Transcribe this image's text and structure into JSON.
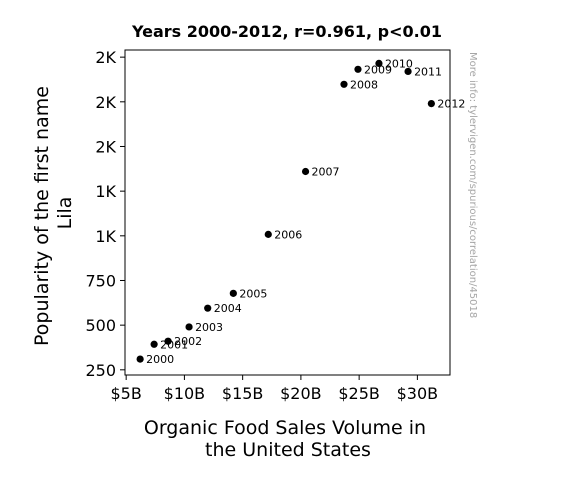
{
  "chart_data": {
    "type": "scatter",
    "title": "Years 2000-2012, r=0.961, p<0.01",
    "xlabel": [
      "Organic Food Sales Volume in",
      "the United States"
    ],
    "ylabel": [
      "Popularity of the first name",
      "Lila"
    ],
    "xlim": [
      4.9,
      32.8
    ],
    "ylim": [
      221,
      2040
    ],
    "x_ticks": [
      {
        "value": 5,
        "label": "$5B"
      },
      {
        "value": 10,
        "label": "$10B"
      },
      {
        "value": 15,
        "label": "$15B"
      },
      {
        "value": 20,
        "label": "$20B"
      },
      {
        "value": 25,
        "label": "$25B"
      },
      {
        "value": 30,
        "label": "$30B"
      }
    ],
    "y_ticks": [
      {
        "value": 250,
        "label": "250"
      },
      {
        "value": 500,
        "label": "500"
      },
      {
        "value": 750,
        "label": "750"
      },
      {
        "value": 1000,
        "label": "1K"
      },
      {
        "value": 1250,
        "label": "1K"
      },
      {
        "value": 1500,
        "label": "2K"
      },
      {
        "value": 1750,
        "label": "2K"
      },
      {
        "value": 2000,
        "label": "2K"
      }
    ],
    "points": [
      {
        "label": "2000",
        "x": 6.2,
        "y": 310
      },
      {
        "label": "2001",
        "x": 7.4,
        "y": 393
      },
      {
        "label": "2002",
        "x": 8.6,
        "y": 410
      },
      {
        "label": "2003",
        "x": 10.4,
        "y": 490
      },
      {
        "label": "2004",
        "x": 12.0,
        "y": 595
      },
      {
        "label": "2005",
        "x": 14.2,
        "y": 678
      },
      {
        "label": "2006",
        "x": 17.2,
        "y": 1008
      },
      {
        "label": "2007",
        "x": 20.4,
        "y": 1360
      },
      {
        "label": "2008",
        "x": 23.7,
        "y": 1848
      },
      {
        "label": "2009",
        "x": 24.9,
        "y": 1932
      },
      {
        "label": "2010",
        "x": 26.7,
        "y": 1965
      },
      {
        "label": "2011",
        "x": 29.2,
        "y": 1920
      },
      {
        "label": "2012",
        "x": 31.2,
        "y": 1740
      }
    ],
    "grid": false,
    "marker_color": "#000000"
  },
  "watermark": "More info: tylervigen.com/spurious/correlation/45018"
}
